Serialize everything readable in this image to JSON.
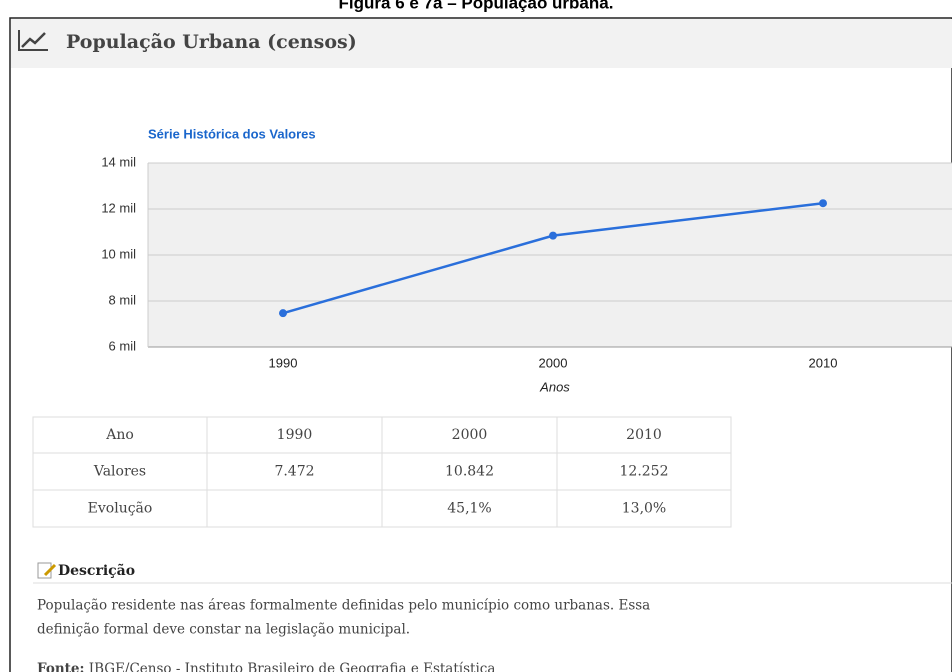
{
  "caption": "Figura 6 e 7a – População urbana.",
  "panel": {
    "title": "População Urbana (censos)"
  },
  "chart_data": {
    "type": "line",
    "title": "Série Histórica dos Valores",
    "x_label": "Anos",
    "categories": [
      "1990",
      "2000",
      "2010"
    ],
    "series": [
      {
        "name": "Valores",
        "color": "#2a6fdb",
        "values": [
          7472,
          10842,
          12252
        ]
      }
    ],
    "ylim": [
      6000,
      14000
    ],
    "yticks": [
      {
        "value": 6000,
        "label": "6 mil"
      },
      {
        "value": 8000,
        "label": "8 mil"
      },
      {
        "value": 10000,
        "label": "10 mil"
      },
      {
        "value": 12000,
        "label": "12 mil"
      },
      {
        "value": 14000,
        "label": "14 mil"
      }
    ],
    "grid": true
  },
  "table": {
    "rows": [
      [
        "Ano",
        "1990",
        "2000",
        "2010"
      ],
      [
        "Valores",
        "7.472",
        "10.842",
        "12.252"
      ],
      [
        "Evolução",
        null,
        "45,1%",
        "13,0%"
      ]
    ]
  },
  "description": {
    "heading": "Descrição",
    "lines": [
      "População residente nas áreas formalmente definidas pelo município como urbanas. Essa",
      "definição formal deve constar na legislação municipal."
    ],
    "source_label": "Fonte:",
    "source_text": "IBGE/Censo - Instituto Brasileiro de Geografia e Estatística"
  }
}
